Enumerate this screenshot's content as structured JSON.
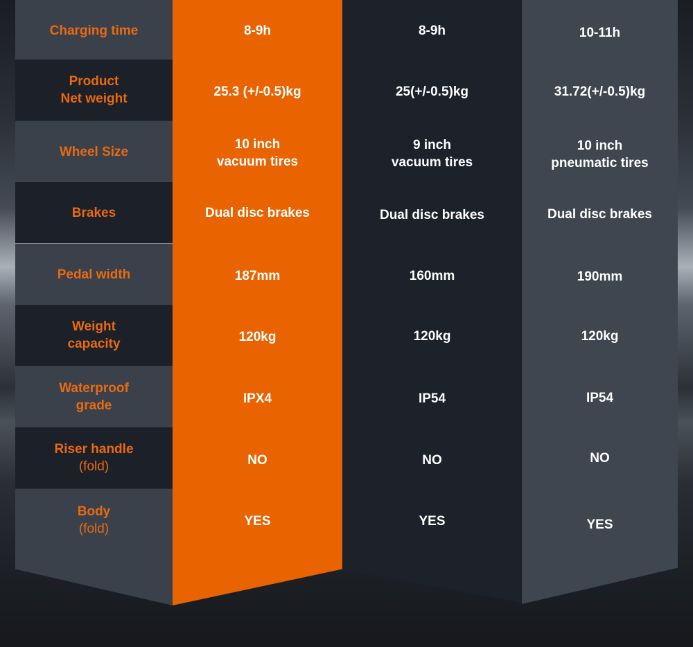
{
  "rows": [
    {
      "label": "Charging time",
      "a": "8-9h",
      "b": "8-9h",
      "c": "10-11h"
    },
    {
      "label": "Product\nNet weight",
      "a": "25.3 (+/-0.5)kg",
      "b": "25(+/-0.5)kg",
      "c": "31.72(+/-0.5)kg"
    },
    {
      "label": "Wheel Size",
      "a": "10 inch\nvacuum tires",
      "b": "9 inch\nvacuum tires",
      "c": "10 inch\npneumatic tires"
    },
    {
      "label": "Brakes",
      "a": "Dual disc brakes",
      "b": "Dual disc brakes",
      "c": "Dual disc brakes"
    },
    {
      "label": "Pedal width",
      "a": "187mm",
      "b": "160mm",
      "c": "190mm"
    },
    {
      "label": "Weight\ncapacity",
      "a": "120kg",
      "b": "120kg",
      "c": "120kg"
    },
    {
      "label": "Waterproof\ngrade",
      "a": "IPX4",
      "b": "IP54",
      "c": "IP54"
    },
    {
      "label": "Riser handle",
      "label_sub": "(fold)",
      "a": "NO",
      "b": "NO",
      "c": "NO"
    },
    {
      "label": "Body",
      "label_sub": "(fold)",
      "a": "YES",
      "b": "YES",
      "c": "YES"
    }
  ],
  "colors": {
    "accent": "#e96400",
    "label_text": "#e96a12",
    "value_text": "#ffffff"
  }
}
